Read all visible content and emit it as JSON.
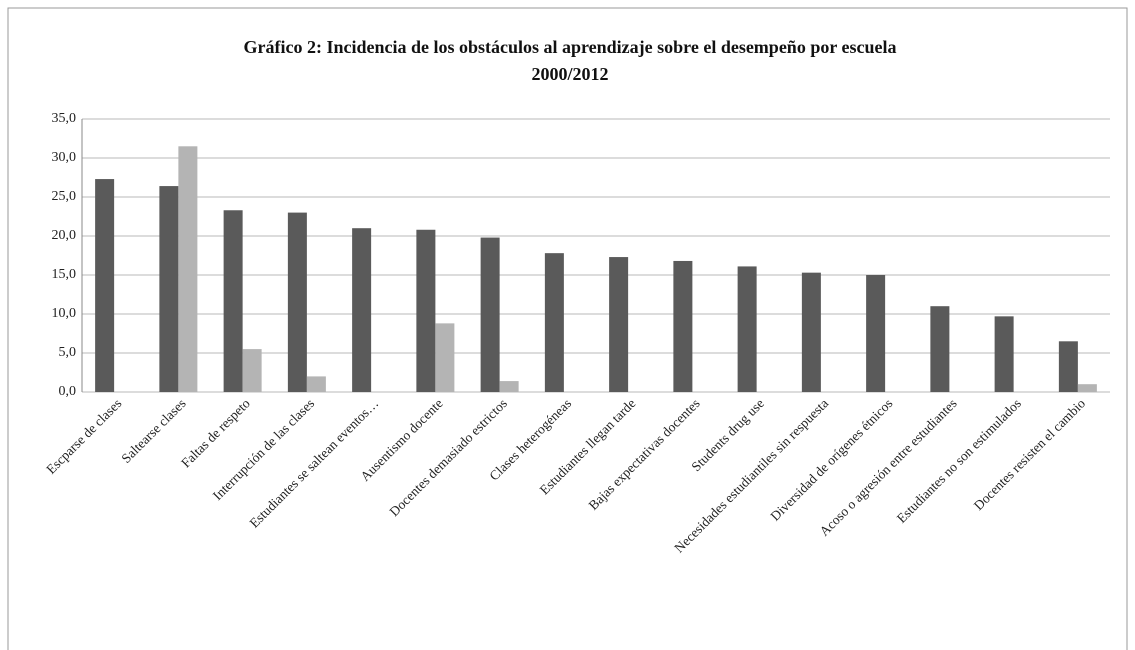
{
  "chart_data": {
    "type": "bar",
    "title": "Gráfico 2: Incidencia de los obstáculos al aprendizaje sobre el desempeño por escuela 2000/2012",
    "categories": [
      "Escparse de clases",
      "Saltearse clases",
      "Faltas de respeto",
      "Interrupción de las clases",
      "Estudiantes se saltean eventos…",
      "Ausentismo docente",
      "Docentes demasiado estrictos",
      "Clases heterogéneas",
      "Estudiantes llegan tarde",
      "Bajas expectativas docentes",
      "Students drug use",
      "Necesidades estudiantiles sin respuesta",
      "Diversidad de orígenes étnicos",
      "Acoso o agresión entre estudiantes",
      "Estudiantes no son estimulados",
      "Docentes resisten el cambio"
    ],
    "series": [
      {
        "color": "#5a5a5a",
        "values": [
          27.3,
          26.4,
          23.3,
          23.0,
          21.0,
          20.8,
          19.8,
          17.8,
          17.3,
          16.8,
          16.1,
          15.3,
          15.0,
          11.0,
          9.7,
          6.5
        ]
      },
      {
        "color": "#b4b4b4",
        "values": [
          0,
          31.5,
          5.5,
          2.0,
          0,
          8.8,
          1.4,
          0,
          0,
          0,
          0,
          0,
          0,
          0,
          0,
          1.0
        ]
      }
    ],
    "ylim": [
      0,
      35
    ],
    "yticks": [
      {
        "value": 0,
        "label": "0,0"
      },
      {
        "value": 5,
        "label": "5,0"
      },
      {
        "value": 10,
        "label": "10,0"
      },
      {
        "value": 15,
        "label": "15,0"
      },
      {
        "value": 20,
        "label": "20,0"
      },
      {
        "value": 25,
        "label": "25,0"
      },
      {
        "value": 30,
        "label": "30,0"
      },
      {
        "value": 35,
        "label": "35,0"
      }
    ],
    "grid": true
  }
}
